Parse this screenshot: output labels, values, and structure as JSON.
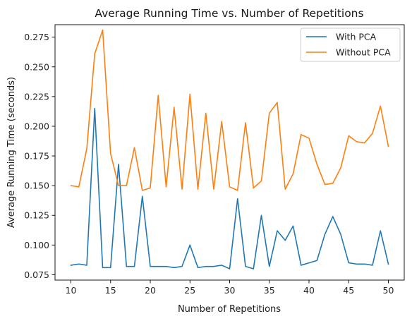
{
  "chart_data": {
    "type": "line",
    "title": "Average Running Time vs. Number of Repetitions",
    "xlabel": "Number of Repetitions",
    "ylabel": "Average Running Time (seconds)",
    "xlim": [
      8,
      52
    ],
    "ylim": [
      0.0705,
      0.2855
    ],
    "xticks": [
      10,
      15,
      20,
      25,
      30,
      35,
      40,
      45,
      50
    ],
    "yticks": [
      0.075,
      0.1,
      0.125,
      0.15,
      0.175,
      0.2,
      0.225,
      0.25,
      0.275
    ],
    "ytick_labels": [
      "0.075",
      "0.100",
      "0.125",
      "0.150",
      "0.175",
      "0.200",
      "0.225",
      "0.250",
      "0.275"
    ],
    "grid": false,
    "legend": "top-right",
    "x": [
      10,
      11,
      12,
      13,
      14,
      15,
      16,
      17,
      18,
      19,
      20,
      21,
      22,
      23,
      24,
      25,
      26,
      27,
      28,
      29,
      30,
      31,
      32,
      33,
      34,
      35,
      36,
      37,
      38,
      39,
      40,
      41,
      42,
      43,
      44,
      45,
      46,
      47,
      48,
      49,
      50
    ],
    "series": [
      {
        "name": "With PCA",
        "color": "#1f77b4",
        "values": [
          0.083,
          0.084,
          0.083,
          0.215,
          0.081,
          0.081,
          0.168,
          0.082,
          0.082,
          0.141,
          0.082,
          0.082,
          0.082,
          0.081,
          0.082,
          0.1,
          0.081,
          0.082,
          0.082,
          0.083,
          0.08,
          0.139,
          0.082,
          0.08,
          0.125,
          0.082,
          0.112,
          0.104,
          0.116,
          0.083,
          0.085,
          0.087,
          0.109,
          0.124,
          0.109,
          0.085,
          0.084,
          0.084,
          0.083,
          0.112,
          0.084
        ]
      },
      {
        "name": "Without PCA",
        "color": "#ff7f0e",
        "values": [
          0.15,
          0.149,
          0.181,
          0.261,
          0.281,
          0.177,
          0.15,
          0.15,
          0.182,
          0.146,
          0.148,
          0.226,
          0.149,
          0.216,
          0.147,
          0.227,
          0.147,
          0.211,
          0.147,
          0.204,
          0.149,
          0.146,
          0.203,
          0.148,
          0.154,
          0.211,
          0.22,
          0.147,
          0.16,
          0.193,
          0.19,
          0.168,
          0.151,
          0.152,
          0.165,
          0.192,
          0.187,
          0.186,
          0.194,
          0.217,
          0.183
        ]
      }
    ]
  }
}
